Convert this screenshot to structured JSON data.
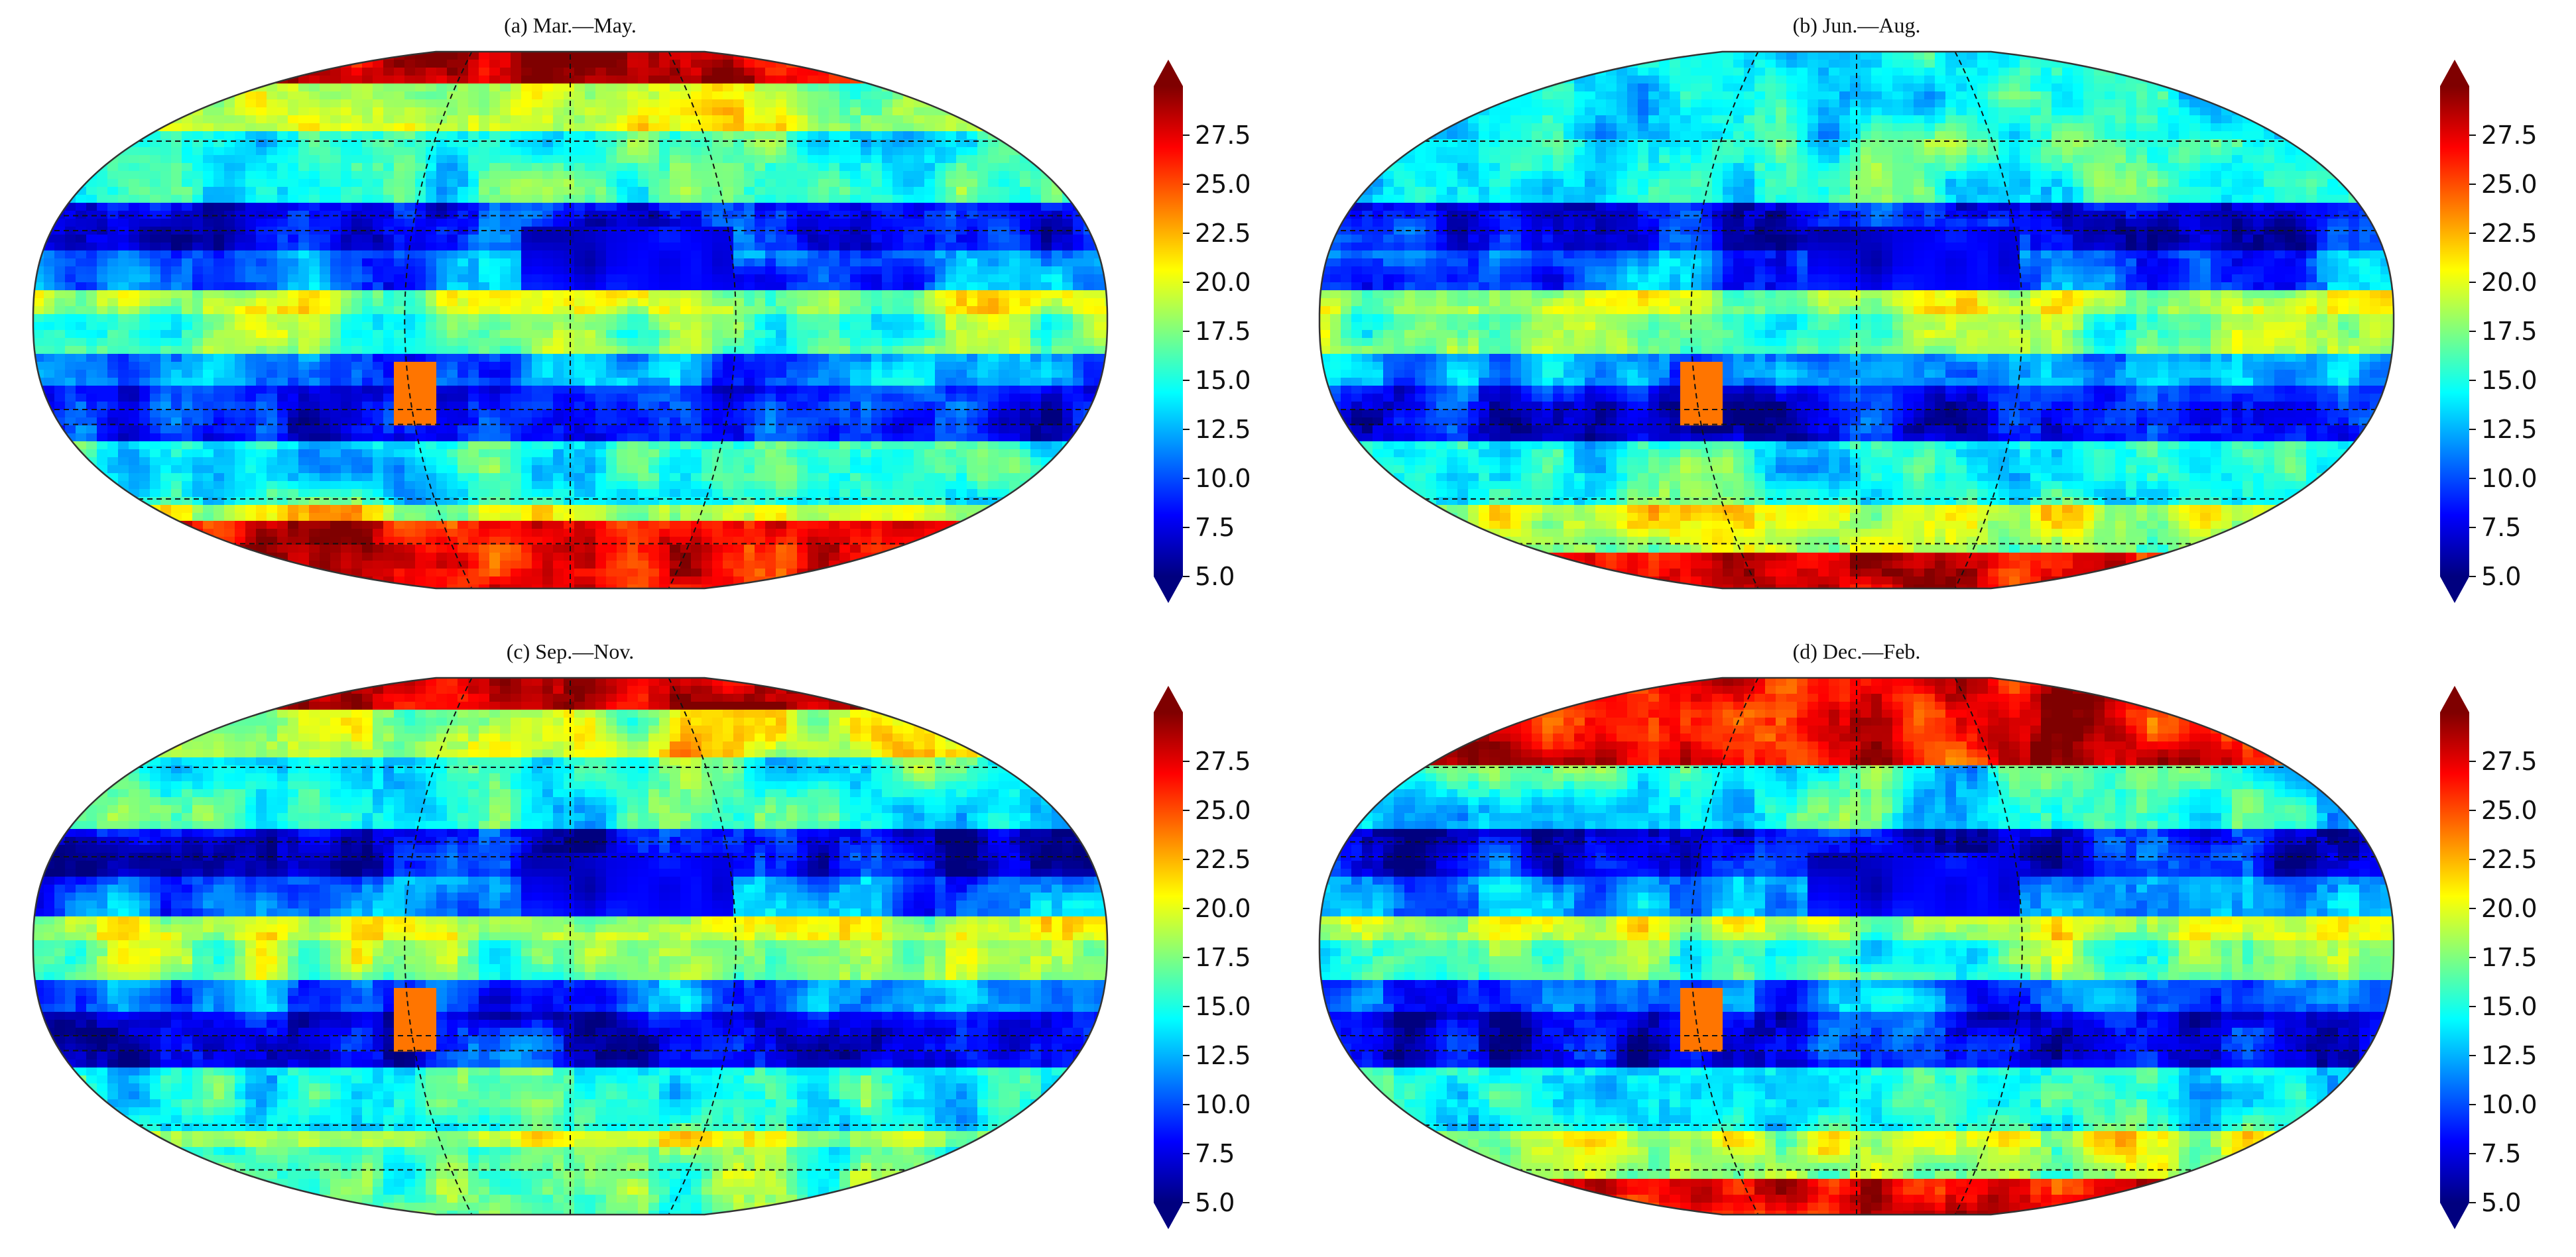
{
  "figure": {
    "panels": [
      {
        "id": "a",
        "title": "(a) Mar.—May."
      },
      {
        "id": "b",
        "title": "(b) Jun.—Aug."
      },
      {
        "id": "c",
        "title": "(c) Sep.—Nov."
      },
      {
        "id": "d",
        "title": "(d) Dec.—Feb."
      }
    ]
  },
  "colorbar": {
    "colormap": "jet",
    "range": [
      5.0,
      30.0
    ],
    "extend": "both",
    "ticks": [
      "5.0",
      "7.5",
      "10.0",
      "12.5",
      "15.0",
      "17.5",
      "20.0",
      "22.5",
      "25.0",
      "27.5"
    ],
    "colors": [
      "#00007f",
      "#0000ff",
      "#007fff",
      "#00ffff",
      "#7fff7f",
      "#ffff00",
      "#ff7f00",
      "#ff0000",
      "#7f0000"
    ]
  },
  "map": {
    "projection": "Robinson",
    "coastlines": true,
    "country_borders": true,
    "graticule": "dashed"
  }
}
